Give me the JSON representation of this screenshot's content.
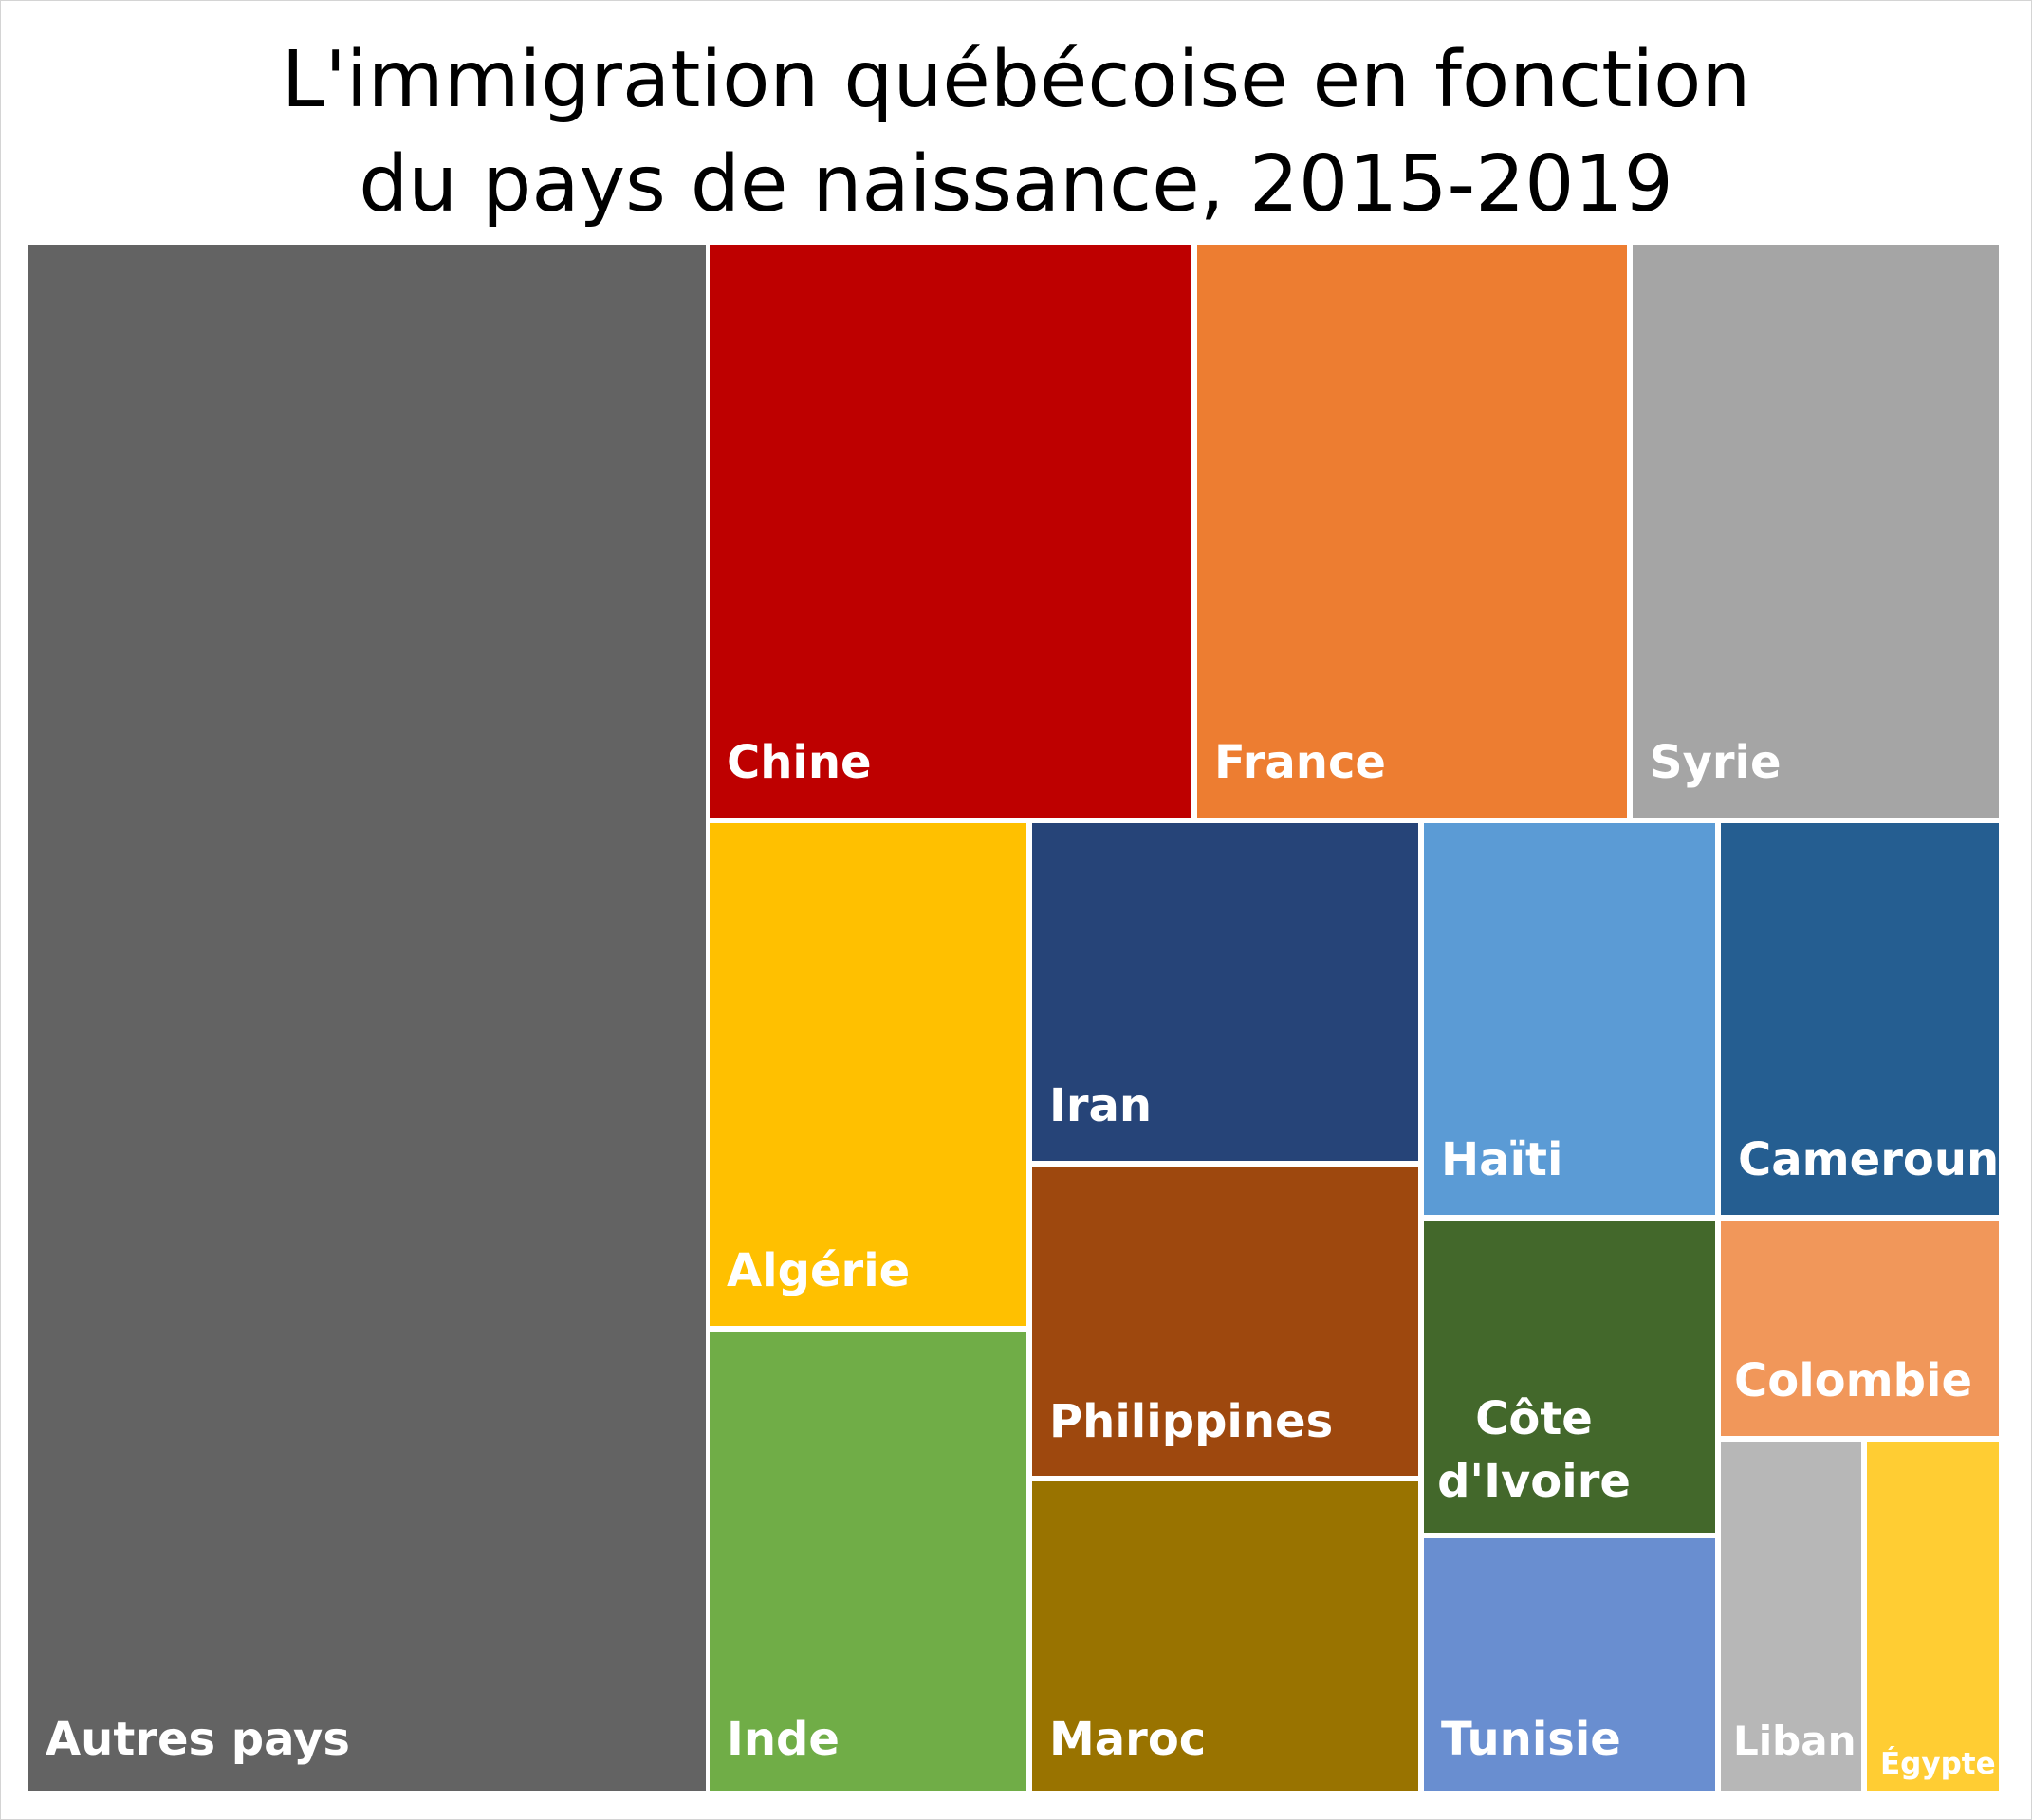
{
  "chart_data": {
    "type": "treemap",
    "title_lines": [
      "L'immigration québécoise en fonction",
      "du pays de naissance, 2015-2019"
    ],
    "label_color": "#ffffff",
    "items": [
      {
        "label": "Autres pays",
        "color": "#636363"
      },
      {
        "label": "Chine",
        "color": "#be0000"
      },
      {
        "label": "France",
        "color": "#ed7d31"
      },
      {
        "label": "Syrie",
        "color": "#a5a5a5"
      },
      {
        "label": "Algérie",
        "color": "#ffc000"
      },
      {
        "label": "Iran",
        "color": "#264478"
      },
      {
        "label": "Haïti",
        "color": "#5b9bd5"
      },
      {
        "label": "Cameroun",
        "color": "#255e91"
      },
      {
        "label": "Inde",
        "color": "#70ad47"
      },
      {
        "label": "Philippines",
        "color": "#9e480e"
      },
      {
        "label": "Côte d'Ivoire",
        "color": "#43682b"
      },
      {
        "label": "Colombie",
        "color": "#f1975a"
      },
      {
        "label": "Maroc",
        "color": "#997300"
      },
      {
        "label": "Tunisie",
        "color": "#698ed0"
      },
      {
        "label": "Liban",
        "color": "#b7b7b7"
      },
      {
        "label": "Égypte",
        "color": "#ffcd33"
      }
    ]
  }
}
